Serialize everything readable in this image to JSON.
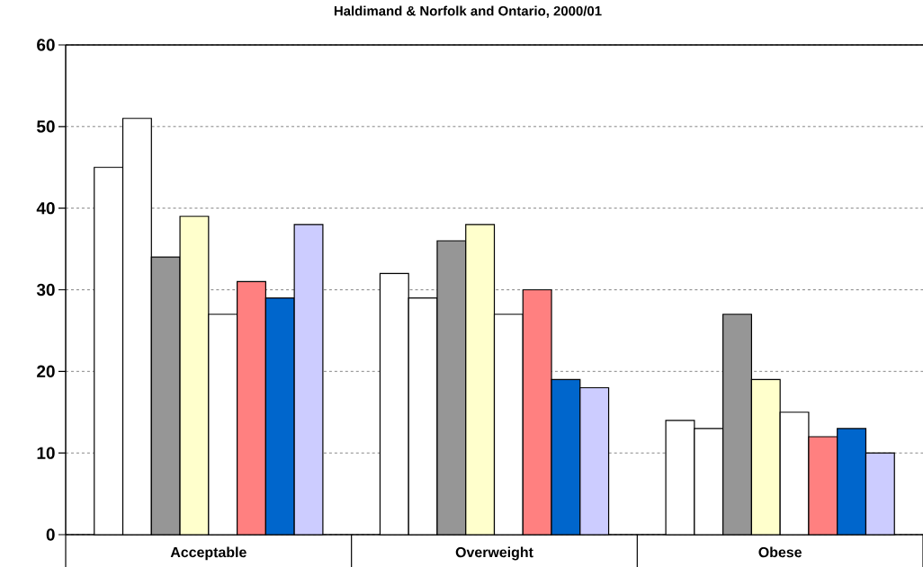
{
  "chart_data": {
    "type": "bar",
    "title": "Haldimand & Norfolk and Ontario, 2000/01",
    "categories": [
      "Acceptable",
      "Overweight",
      "Obese"
    ],
    "series": [
      {
        "color": "#ffffff",
        "values": [
          45,
          32,
          14
        ]
      },
      {
        "color": "#ffffff",
        "values": [
          51,
          29,
          13
        ]
      },
      {
        "color": "#969696",
        "values": [
          34,
          36,
          27
        ]
      },
      {
        "color": "#ffffcc",
        "values": [
          39,
          38,
          19
        ]
      },
      {
        "color": "#ffffff",
        "values": [
          27,
          27,
          15
        ]
      },
      {
        "color": "#ff8080",
        "values": [
          31,
          30,
          12
        ]
      },
      {
        "color": "#0066cc",
        "values": [
          29,
          19,
          13
        ]
      },
      {
        "color": "#ccccff",
        "values": [
          38,
          18,
          10
        ]
      }
    ],
    "ylim": [
      0,
      60
    ],
    "yticks": [
      0,
      10,
      20,
      30,
      40,
      50,
      60
    ],
    "grid": "y"
  }
}
